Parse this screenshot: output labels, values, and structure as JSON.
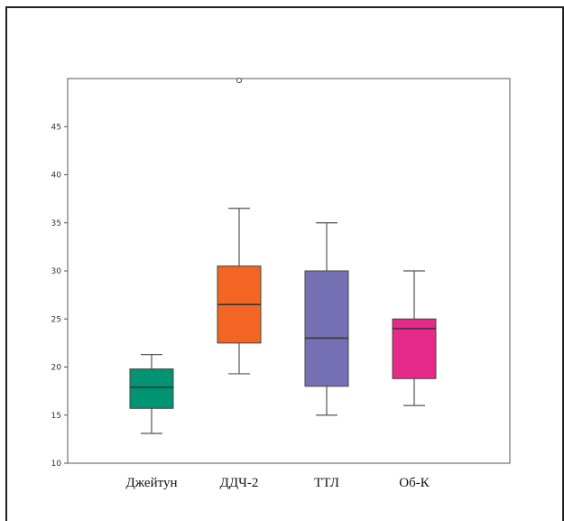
{
  "chart_data": {
    "type": "box",
    "title": "",
    "xlabel": "",
    "ylabel": "",
    "ylim": [
      10,
      50
    ],
    "yticks": [
      10,
      15,
      20,
      25,
      30,
      35,
      40,
      45
    ],
    "grid": false,
    "categories": [
      "Джейтун",
      "ДДЧ-2",
      "ТТЛ",
      "Об-К"
    ],
    "series": [
      {
        "category": "Джейтун",
        "color": "#009473",
        "min": 13.1,
        "q1": 15.7,
        "median": 17.9,
        "q3": 19.8,
        "max": 21.3,
        "outliers": []
      },
      {
        "category": "ДДЧ-2",
        "color": "#F26522",
        "min": 19.3,
        "q1": 22.5,
        "median": 26.5,
        "q3": 30.5,
        "max": 36.5,
        "outliers": [
          49.8
        ]
      },
      {
        "category": "ТТЛ",
        "color": "#7570B3",
        "min": 15.0,
        "q1": 18.0,
        "median": 23.0,
        "q3": 30.0,
        "max": 35.0,
        "outliers": []
      },
      {
        "category": "Об-К",
        "color": "#E7298A",
        "min": 16.0,
        "q1": 18.8,
        "median": 24.0,
        "q3": 25.0,
        "max": 30.0,
        "outliers": []
      }
    ]
  }
}
